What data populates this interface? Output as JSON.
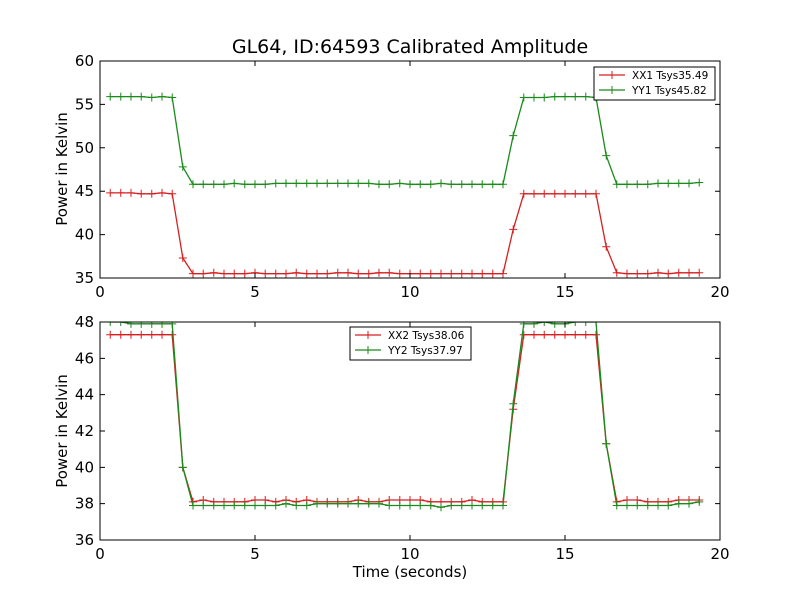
{
  "chart_data": [
    {
      "type": "line",
      "title": "GL64, ID:64593 Calibrated Amplitude",
      "xlabel": "",
      "ylabel": "Power in Kelvin",
      "xlim": [
        0,
        20
      ],
      "ylim": [
        35,
        60
      ],
      "xticks": [
        0,
        5,
        10,
        15,
        20
      ],
      "yticks": [
        35,
        40,
        45,
        50,
        55,
        60
      ],
      "legend_position": "top-right",
      "x": [
        0.33,
        0.67,
        1.0,
        1.33,
        1.67,
        2.0,
        2.33,
        2.67,
        3.0,
        3.33,
        3.67,
        4.0,
        4.33,
        4.67,
        5.0,
        5.33,
        5.67,
        6.0,
        6.33,
        6.67,
        7.0,
        7.33,
        7.67,
        8.0,
        8.33,
        8.67,
        9.0,
        9.33,
        9.67,
        10.0,
        10.33,
        10.67,
        11.0,
        11.33,
        11.67,
        12.0,
        12.33,
        12.67,
        13.0,
        13.33,
        13.67,
        14.0,
        14.33,
        14.67,
        15.0,
        15.33,
        15.67,
        16.0,
        16.33,
        16.67,
        17.0,
        17.33,
        17.67,
        18.0,
        18.33,
        18.67,
        19.0,
        19.33
      ],
      "series": [
        {
          "name": "XX1 Tsys35.49",
          "color": "#d62020",
          "values": [
            44.8,
            44.8,
            44.8,
            44.7,
            44.7,
            44.8,
            44.7,
            37.3,
            35.5,
            35.5,
            35.6,
            35.5,
            35.5,
            35.5,
            35.6,
            35.5,
            35.5,
            35.5,
            35.6,
            35.5,
            35.5,
            35.5,
            35.6,
            35.6,
            35.5,
            35.5,
            35.6,
            35.6,
            35.5,
            35.5,
            35.5,
            35.5,
            35.5,
            35.5,
            35.5,
            35.5,
            35.5,
            35.5,
            35.5,
            40.6,
            44.7,
            44.7,
            44.7,
            44.7,
            44.7,
            44.7,
            44.7,
            44.7,
            38.6,
            35.6,
            35.5,
            35.5,
            35.5,
            35.6,
            35.5,
            35.6,
            35.6,
            35.6
          ]
        },
        {
          "name": "YY1 Tsys45.82",
          "color": "#1a8a1a",
          "values": [
            55.9,
            55.9,
            55.9,
            55.9,
            55.8,
            55.9,
            55.8,
            47.8,
            45.8,
            45.8,
            45.8,
            45.8,
            45.9,
            45.8,
            45.8,
            45.8,
            45.9,
            45.9,
            45.9,
            45.9,
            45.9,
            45.9,
            45.9,
            45.9,
            45.9,
            45.9,
            45.8,
            45.8,
            45.9,
            45.8,
            45.8,
            45.8,
            45.9,
            45.8,
            45.8,
            45.8,
            45.8,
            45.8,
            45.8,
            51.4,
            55.8,
            55.8,
            55.8,
            55.9,
            55.9,
            55.9,
            55.9,
            55.8,
            49.1,
            45.8,
            45.8,
            45.8,
            45.8,
            45.9,
            45.9,
            45.9,
            45.9,
            46.0
          ]
        }
      ]
    },
    {
      "type": "line",
      "title": "",
      "xlabel": "Time (seconds)",
      "ylabel": "Power in Kelvin",
      "xlim": [
        0,
        20
      ],
      "ylim": [
        36,
        48
      ],
      "xticks": [
        0,
        5,
        10,
        15,
        20
      ],
      "yticks": [
        36,
        38,
        40,
        42,
        44,
        46,
        48
      ],
      "legend_position": "top-center",
      "x": [
        0.33,
        0.67,
        1.0,
        1.33,
        1.67,
        2.0,
        2.33,
        2.67,
        3.0,
        3.33,
        3.67,
        4.0,
        4.33,
        4.67,
        5.0,
        5.33,
        5.67,
        6.0,
        6.33,
        6.67,
        7.0,
        7.33,
        7.67,
        8.0,
        8.33,
        8.67,
        9.0,
        9.33,
        9.67,
        10.0,
        10.33,
        10.67,
        11.0,
        11.33,
        11.67,
        12.0,
        12.33,
        12.67,
        13.0,
        13.33,
        13.67,
        14.0,
        14.33,
        14.67,
        15.0,
        15.33,
        15.67,
        16.0,
        16.33,
        16.67,
        17.0,
        17.33,
        17.67,
        18.0,
        18.33,
        18.67,
        19.0,
        19.33
      ],
      "series": [
        {
          "name": "XX2 Tsys38.06",
          "color": "#d62020",
          "values": [
            47.3,
            47.3,
            47.3,
            47.3,
            47.3,
            47.3,
            47.3,
            40.0,
            38.1,
            38.2,
            38.1,
            38.1,
            38.1,
            38.1,
            38.2,
            38.2,
            38.1,
            38.2,
            38.1,
            38.2,
            38.1,
            38.1,
            38.1,
            38.1,
            38.2,
            38.1,
            38.1,
            38.2,
            38.2,
            38.2,
            38.2,
            38.1,
            38.1,
            38.1,
            38.1,
            38.2,
            38.1,
            38.1,
            38.1,
            43.2,
            47.3,
            47.3,
            47.3,
            47.3,
            47.3,
            47.3,
            47.3,
            47.3,
            41.3,
            38.1,
            38.2,
            38.2,
            38.1,
            38.1,
            38.1,
            38.2,
            38.2,
            38.2
          ]
        },
        {
          "name": "YY2 Tsys37.97",
          "color": "#1a8a1a",
          "values": [
            48.0,
            48.0,
            47.9,
            47.9,
            47.9,
            47.9,
            47.9,
            40.0,
            37.9,
            37.9,
            37.9,
            37.9,
            37.9,
            37.9,
            37.9,
            37.9,
            37.9,
            38.0,
            37.9,
            37.9,
            38.0,
            38.0,
            38.0,
            38.0,
            38.0,
            38.0,
            38.0,
            37.9,
            37.9,
            37.9,
            37.9,
            37.9,
            37.8,
            37.9,
            37.9,
            37.9,
            37.9,
            37.9,
            37.9,
            43.5,
            47.9,
            47.9,
            48.0,
            47.9,
            47.9,
            48.0,
            48.0,
            48.0,
            41.3,
            37.9,
            37.9,
            37.9,
            37.9,
            37.9,
            37.9,
            38.0,
            38.0,
            38.1
          ]
        }
      ]
    }
  ]
}
